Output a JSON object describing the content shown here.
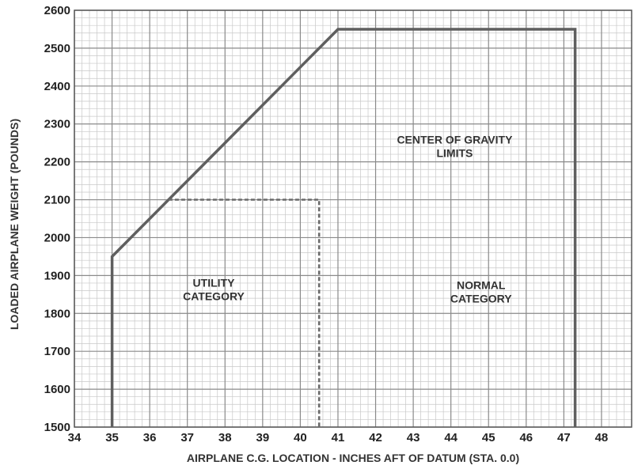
{
  "chart_data": {
    "type": "line",
    "title": "",
    "xlabel": "AIRPLANE C.G. LOCATION - INCHES AFT OF DATUM (STA. 0.0)",
    "ylabel": "LOADED AIRPLANE WEIGHT (POUNDS)",
    "xlim": [
      34,
      48.8
    ],
    "ylim": [
      1500,
      2600
    ],
    "x_ticks": [
      "34",
      "35",
      "36",
      "37",
      "38",
      "39",
      "40",
      "41",
      "42",
      "43",
      "44",
      "45",
      "46",
      "47",
      "48"
    ],
    "y_ticks": [
      "1500",
      "1600",
      "1700",
      "1800",
      "1900",
      "2000",
      "2100",
      "2200",
      "2300",
      "2400",
      "2500",
      "2600"
    ],
    "grid": true,
    "series": [
      {
        "style": "solid",
        "color": "#5f5f5f",
        "points": [
          [
            35,
            1500
          ],
          [
            35,
            1950
          ],
          [
            41,
            2550
          ],
          [
            47.3,
            2550
          ],
          [
            47.3,
            1500
          ]
        ]
      },
      {
        "style": "dashed",
        "color": "#6a6a6a",
        "points": [
          [
            36.5,
            2100
          ],
          [
            40.5,
            2100
          ],
          [
            40.5,
            1500
          ]
        ]
      }
    ],
    "annotations": [
      {
        "lines": [
          "CENTER OF GRAVITY",
          "LIMITS"
        ],
        "x": 44.1,
        "y": 2248
      },
      {
        "lines": [
          "UTILITY",
          "CATEGORY"
        ],
        "x": 37.7,
        "y": 1870
      },
      {
        "lines": [
          "NORMAL",
          "CATEGORY"
        ],
        "x": 44.8,
        "y": 1864
      }
    ]
  }
}
